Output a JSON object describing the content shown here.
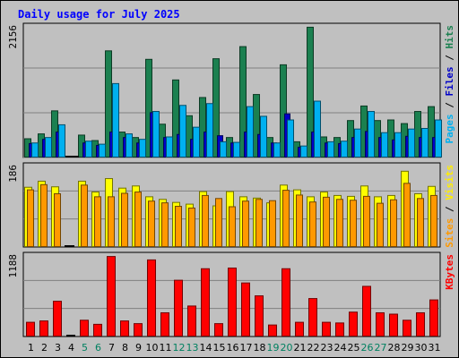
{
  "chart_data": {
    "type": "bar",
    "title": "Daily usage for July 2025",
    "categories": [
      "1",
      "2",
      "3",
      "4",
      "5",
      "6",
      "7",
      "8",
      "9",
      "10",
      "11",
      "12",
      "13",
      "14",
      "15",
      "16",
      "17",
      "18",
      "19",
      "20",
      "21",
      "22",
      "23",
      "24",
      "25",
      "26",
      "27",
      "28",
      "29",
      "30",
      "31"
    ],
    "weekend_days": [
      "5",
      "6",
      "12",
      "13",
      "19",
      "20",
      "26",
      "27"
    ],
    "panels": [
      {
        "id": "hits",
        "max_label": "2156",
        "ymax": 2156,
        "axis_title": [
          {
            "text": "Pages",
            "color": "#00b0f0"
          },
          {
            "text": "Files",
            "color": "#0000c8"
          },
          {
            "text": "Hits",
            "color": "#1b8050"
          }
        ],
        "series": [
          {
            "name": "Hits",
            "color": "#1b8050",
            "values": [
              310,
              390,
              770,
              0,
              370,
              280,
              1760,
              420,
              330,
              1620,
              550,
              1280,
              690,
              990,
              1630,
              330,
              1830,
              1040,
              330,
              1530,
              260,
              2150,
              340,
              330,
              610,
              850,
              610,
              620,
              560,
              760,
              840
            ]
          },
          {
            "name": "Files",
            "color": "#0000c8",
            "values": [
              230,
              300,
              420,
              0,
              240,
              200,
              420,
              330,
              240,
              740,
              330,
              380,
              300,
              420,
              360,
              240,
              420,
              380,
              240,
              720,
              170,
              420,
              240,
              230,
              330,
              430,
              330,
              290,
              350,
              330,
              330
            ]
          },
          {
            "name": "Pages",
            "color": "#00b0f0",
            "values": [
              240,
              330,
              540,
              0,
              270,
              220,
              1220,
              390,
              300,
              760,
              340,
              860,
              500,
              890,
              260,
              250,
              840,
              680,
              240,
              620,
              190,
              930,
              260,
              270,
              470,
              760,
              410,
              410,
              470,
              480,
              620
            ]
          }
        ]
      },
      {
        "id": "visits",
        "max_label": "186",
        "ymax": 186,
        "axis_title": [
          {
            "text": "Sites",
            "color": "#ff9900"
          },
          {
            "text": "Visits",
            "color": "#ffee00"
          }
        ],
        "series": [
          {
            "name": "Visits",
            "color": "#ffff00",
            "values": [
              138,
              152,
              139,
              0,
              152,
              127,
              158,
              136,
              141,
              116,
              110,
              103,
              99,
              128,
              95,
              128,
              116,
              113,
              102,
              143,
              132,
              116,
              127,
              119,
              117,
              141,
              116,
              119,
              175,
              123,
              140
            ]
          },
          {
            "name": "Sites",
            "color": "#ff9900",
            "values": [
              132,
              144,
              123,
              0,
              143,
              116,
              116,
              124,
              127,
              106,
              102,
              94,
              90,
              119,
              112,
              93,
              106,
              110,
              107,
              131,
              120,
              104,
              115,
              110,
              108,
              117,
              101,
              109,
              147,
              112,
              119
            ]
          }
        ]
      },
      {
        "id": "kbytes",
        "max_label": "1188",
        "ymax": 1188,
        "axis_title": [
          {
            "text": "KBytes",
            "color": "#ff0000"
          }
        ],
        "series": [
          {
            "name": "KBytes",
            "color": "#ff0000",
            "values": [
              210,
              230,
              520,
              0,
              240,
              180,
              1180,
              230,
              190,
              1130,
              350,
              830,
              450,
              1000,
              190,
              1010,
              790,
              600,
              170,
              1000,
              210,
              560,
              210,
              200,
              360,
              740,
              350,
              330,
              240,
              350,
              540
            ]
          }
        ]
      }
    ]
  }
}
